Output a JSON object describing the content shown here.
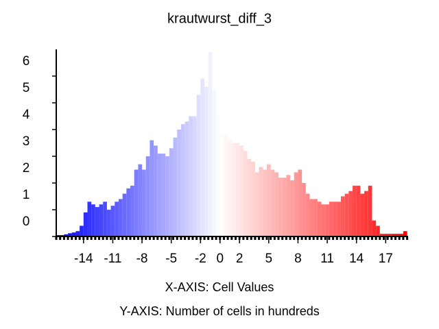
{
  "chart_data": {
    "type": "histogram",
    "title": "krautwurst_diff_3",
    "x_label": "X-AXIS: Cell Values",
    "y_label": "Y-AXIS: Number of cells in hundreds",
    "bins": [
      -16.8,
      -16.4,
      -16,
      -15.6,
      -15.2,
      -14.8,
      -14.4,
      -14,
      -13.6,
      -13.2,
      -12.8,
      -12.4,
      -12,
      -11.6,
      -11.2,
      -10.8,
      -10.4,
      -10,
      -9.6,
      -9.2,
      -8.8,
      -8.4,
      -8,
      -7.6,
      -7.2,
      -6.8,
      -6.4,
      -6,
      -5.6,
      -5.2,
      -4.8,
      -4.4,
      -4,
      -3.6,
      -3.2,
      -2.8,
      -2.4,
      -2,
      -1.6,
      -1.2,
      -0.8,
      -0.4,
      0,
      0.4,
      0.8,
      1.2,
      1.6,
      2,
      2.4,
      2.8,
      3.2,
      3.6,
      4,
      4.4,
      4.8,
      5.2,
      5.6,
      6,
      6.4,
      6.8,
      7.2,
      7.6,
      8,
      8.4,
      8.8,
      9.2,
      9.6,
      10,
      10.4,
      10.8,
      11.2,
      11.6,
      12,
      12.4,
      12.8,
      13.2,
      13.6,
      14,
      14.4,
      14.8,
      15.2,
      15.6,
      16,
      16.4,
      16.8,
      17.2,
      17.6,
      18,
      18.4,
      18.8,
      19.2
    ],
    "values": [
      0.05,
      0.05,
      0.08,
      0.12,
      0.15,
      0.2,
      0.4,
      0.9,
      1.3,
      1.2,
      1.1,
      1.2,
      1.3,
      1.0,
      1.15,
      1.3,
      1.4,
      1.6,
      1.8,
      1.9,
      2.5,
      2.7,
      2.5,
      3.0,
      3.6,
      3.4,
      3.1,
      3.1,
      3.0,
      3.3,
      3.7,
      4.0,
      4.2,
      4.3,
      4.5,
      4.5,
      5.3,
      5.9,
      5.6,
      6.9,
      5.5,
      4.5,
      3.8,
      3.8,
      3.6,
      3.5,
      3.5,
      3.4,
      3.2,
      2.9,
      2.8,
      2.4,
      2.6,
      2.5,
      2.7,
      2.5,
      2.4,
      2.2,
      2.2,
      2.3,
      2.1,
      2.4,
      2.5,
      2.0,
      1.6,
      1.4,
      1.4,
      1.3,
      1.2,
      1.2,
      1.3,
      1.3,
      1.3,
      1.5,
      1.6,
      1.7,
      1.9,
      1.9,
      1.6,
      1.7,
      1.9,
      0.6,
      0.4,
      0.1,
      0.1,
      0.1,
      0.1,
      0.1,
      0.1,
      0.2
    ],
    "colormap": [
      "#0000ff",
      "#ffffff",
      "#ff0000"
    ],
    "xlim": [
      -16.8,
      19.3
    ],
    "xticks": [
      -14,
      -11,
      -8,
      -5,
      -2,
      0,
      2,
      5,
      8,
      11,
      14,
      17
    ],
    "ylim": [
      0,
      7
    ],
    "yticks": [
      0,
      1,
      2,
      3,
      4,
      5,
      6
    ],
    "grid": false
  }
}
